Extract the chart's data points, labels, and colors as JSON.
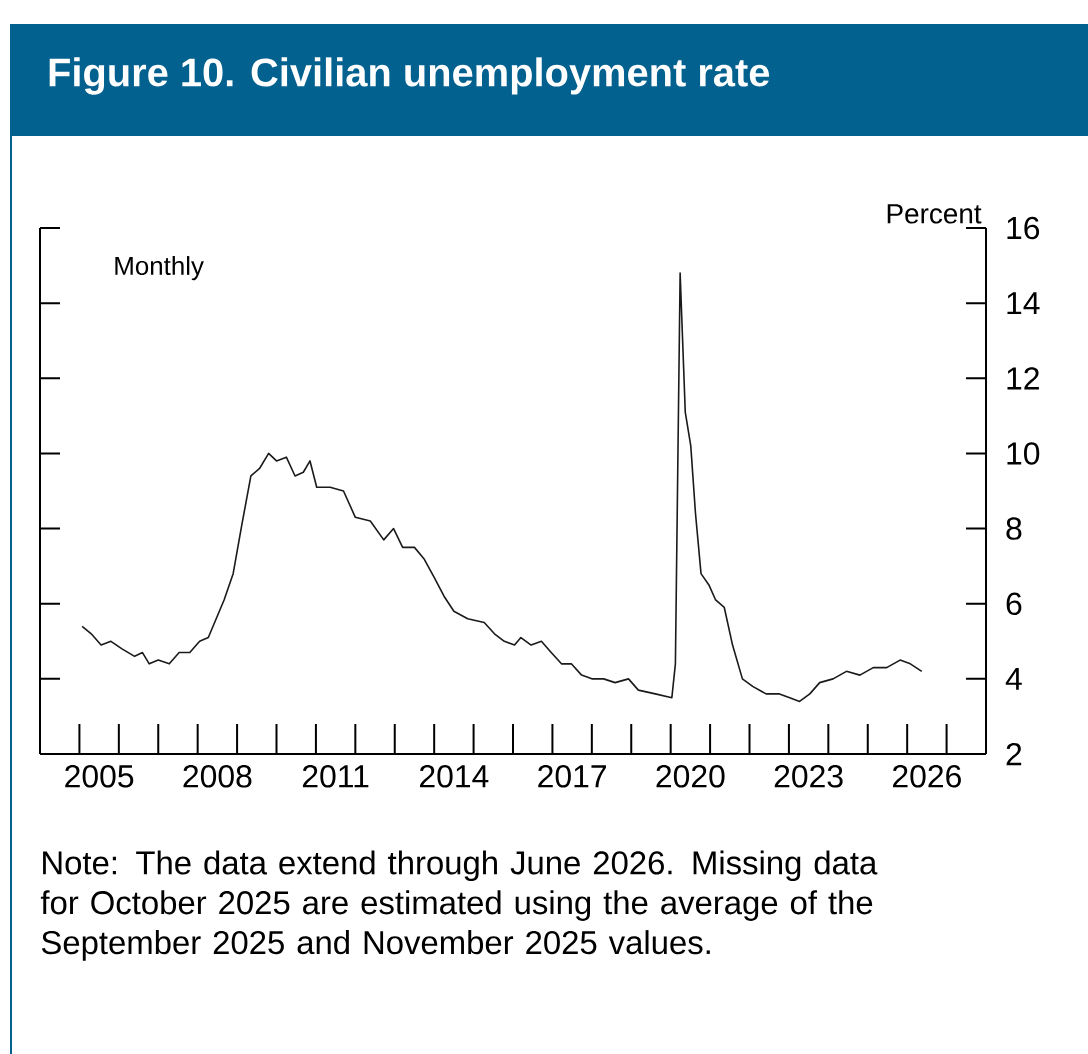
{
  "chart_data": {
    "type": "line",
    "title": "Figure 10. Civilian unemployment rate",
    "ylabel": "Percent",
    "annotations": [
      "Monthly",
      "Note: The data extend through June 2026. Missing data for October 2025 are estimated using the average of the September 2025 and November 2025 values."
    ],
    "xlim": [
      2004,
      2028
    ],
    "ylim": [
      2,
      16
    ],
    "xticks": [
      {
        "value": 2005.5,
        "label": "2005"
      },
      {
        "value": 2008.5,
        "label": "2008"
      },
      {
        "value": 2011.5,
        "label": "2011"
      },
      {
        "value": 2014.5,
        "label": "2014"
      },
      {
        "value": 2017.5,
        "label": "2017"
      },
      {
        "value": 2020.5,
        "label": "2020"
      },
      {
        "value": 2023.5,
        "label": "2023"
      },
      {
        "value": 2026.5,
        "label": "2026"
      },
      {
        "value": 2005,
        "label": null
      },
      {
        "value": 2006,
        "label": null
      },
      {
        "value": 2007,
        "label": null
      },
      {
        "value": 2008,
        "label": null
      },
      {
        "value": 2009,
        "label": null
      },
      {
        "value": 2010,
        "label": null
      },
      {
        "value": 2011,
        "label": null
      },
      {
        "value": 2012,
        "label": null
      },
      {
        "value": 2013,
        "label": null
      },
      {
        "value": 2014,
        "label": null
      },
      {
        "value": 2015,
        "label": null
      },
      {
        "value": 2016,
        "label": null
      },
      {
        "value": 2017,
        "label": null
      },
      {
        "value": 2018,
        "label": null
      },
      {
        "value": 2019,
        "label": null
      },
      {
        "value": 2020,
        "label": null
      },
      {
        "value": 2021,
        "label": null
      },
      {
        "value": 2022,
        "label": null
      },
      {
        "value": 2023,
        "label": null
      },
      {
        "value": 2024,
        "label": null
      },
      {
        "value": 2025,
        "label": null
      },
      {
        "value": 2026,
        "label": null
      },
      {
        "value": 2027,
        "label": null
      }
    ],
    "yticks": [
      2,
      4,
      6,
      8,
      10,
      12,
      14,
      16
    ],
    "series": [
      {
        "color": "#1a1a1a",
        "x": [
          2005.07,
          2005.3,
          2005.55,
          2005.8,
          2006.08,
          2006.4,
          2006.6,
          2006.77,
          2007.0,
          2007.28,
          2007.53,
          2007.8,
          2008.05,
          2008.27,
          2008.47,
          2008.67,
          2008.9,
          2009.12,
          2009.35,
          2009.57,
          2009.8,
          2010.0,
          2010.25,
          2010.47,
          2010.68,
          2010.85,
          2011.02,
          2011.36,
          2011.7,
          2012.0,
          2012.38,
          2012.72,
          2012.97,
          2013.2,
          2013.5,
          2013.74,
          2014.0,
          2014.25,
          2014.5,
          2014.85,
          2015.27,
          2015.53,
          2015.78,
          2016.04,
          2016.2,
          2016.46,
          2016.72,
          2016.97,
          2017.23,
          2017.48,
          2017.74,
          2018.0,
          2018.3,
          2018.59,
          2018.93,
          2019.18,
          2019.61,
          2020.03,
          2020.12,
          2020.24,
          2020.37,
          2020.51,
          2020.63,
          2020.77,
          2020.97,
          2021.14,
          2021.36,
          2021.57,
          2021.82,
          2022.08,
          2022.42,
          2022.76,
          2023.02,
          2023.27,
          2023.53,
          2023.78,
          2024.12,
          2024.46,
          2024.8,
          2025.14,
          2025.48,
          2025.82,
          2026.08,
          2026.37
        ],
        "values": [
          5.4,
          5.2,
          4.9,
          5.0,
          4.8,
          4.6,
          4.7,
          4.4,
          4.5,
          4.4,
          4.7,
          4.7,
          5.0,
          5.1,
          5.6,
          6.1,
          6.8,
          8.1,
          9.4,
          9.6,
          10.0,
          9.8,
          9.9,
          9.4,
          9.5,
          9.8,
          9.1,
          9.1,
          9.0,
          8.3,
          8.2,
          7.7,
          8.0,
          7.5,
          7.5,
          7.2,
          6.7,
          6.2,
          5.8,
          5.6,
          5.5,
          5.2,
          5.0,
          4.9,
          5.1,
          4.9,
          5.0,
          4.7,
          4.4,
          4.4,
          4.1,
          4.0,
          4.0,
          3.9,
          4.0,
          3.7,
          3.6,
          3.5,
          4.4,
          14.8,
          11.1,
          10.2,
          8.4,
          6.8,
          6.5,
          6.1,
          5.9,
          4.9,
          4.0,
          3.8,
          3.6,
          3.6,
          3.5,
          3.4,
          3.6,
          3.9,
          4.0,
          4.2,
          4.1,
          4.3,
          4.3,
          4.5,
          4.4,
          4.2
        ]
      }
    ]
  }
}
